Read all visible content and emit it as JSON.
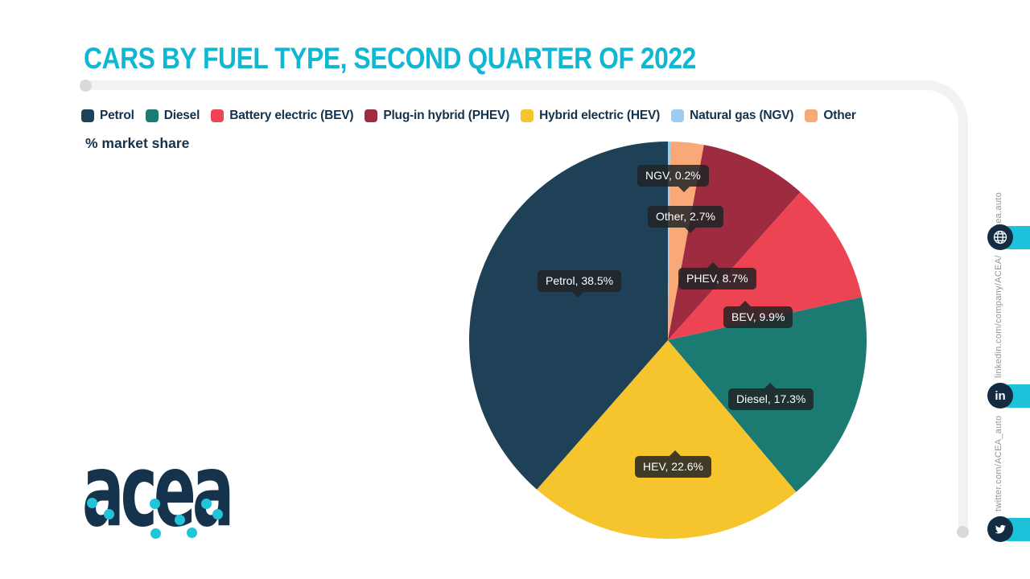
{
  "page": {
    "title": "CARS BY FUEL TYPE, SECOND QUARTER OF 2022",
    "units_label": "% market share"
  },
  "chart_data": {
    "type": "pie",
    "title": "CARS BY FUEL TYPE, SECOND QUARTER OF 2022",
    "value_label": "% market share",
    "legend_position": "top",
    "legend": [
      {
        "label": "Petrol",
        "color": "#1e4158"
      },
      {
        "label": "Diesel",
        "color": "#1b7a72"
      },
      {
        "label": "Battery electric (BEV)",
        "color": "#ec4452"
      },
      {
        "label": "Plug-in hybrid (PHEV)",
        "color": "#9e2b40"
      },
      {
        "label": "Hybrid electric (HEV)",
        "color": "#f6c52e"
      },
      {
        "label": "Natural gas (NGV)",
        "color": "#9fccee"
      },
      {
        "label": "Other",
        "color": "#f9a877"
      }
    ],
    "slices_clockwise_from_top": [
      {
        "name": "NGV",
        "value": 0.2,
        "color": "#9fccee",
        "label": "NGV, 0.2%"
      },
      {
        "name": "Other",
        "value": 2.7,
        "color": "#f9a877",
        "label": "Other, 2.7%"
      },
      {
        "name": "PHEV",
        "value": 8.7,
        "color": "#9e2b40",
        "label": "PHEV, 8.7%"
      },
      {
        "name": "BEV",
        "value": 9.9,
        "color": "#ec4452",
        "label": "BEV, 9.9%"
      },
      {
        "name": "Diesel",
        "value": 17.3,
        "color": "#1b7a72",
        "label": "Diesel, 17.3%"
      },
      {
        "name": "HEV",
        "value": 22.6,
        "color": "#f6c52e",
        "label": "HEV, 22.6%"
      },
      {
        "name": "Petrol",
        "value": 38.5,
        "color": "#1e4158",
        "label": "Petrol, 38.5%"
      }
    ]
  },
  "logo": {
    "text": "acea"
  },
  "sidebar": {
    "website": "acea.auto",
    "linkedin": "linkedin.com/company/ACEA/",
    "twitter": "twitter.com/ACEA_auto"
  },
  "colors": {
    "accent_cyan": "#1cc2d9",
    "title_cyan": "#10b7d3",
    "navy": "#14324b"
  }
}
